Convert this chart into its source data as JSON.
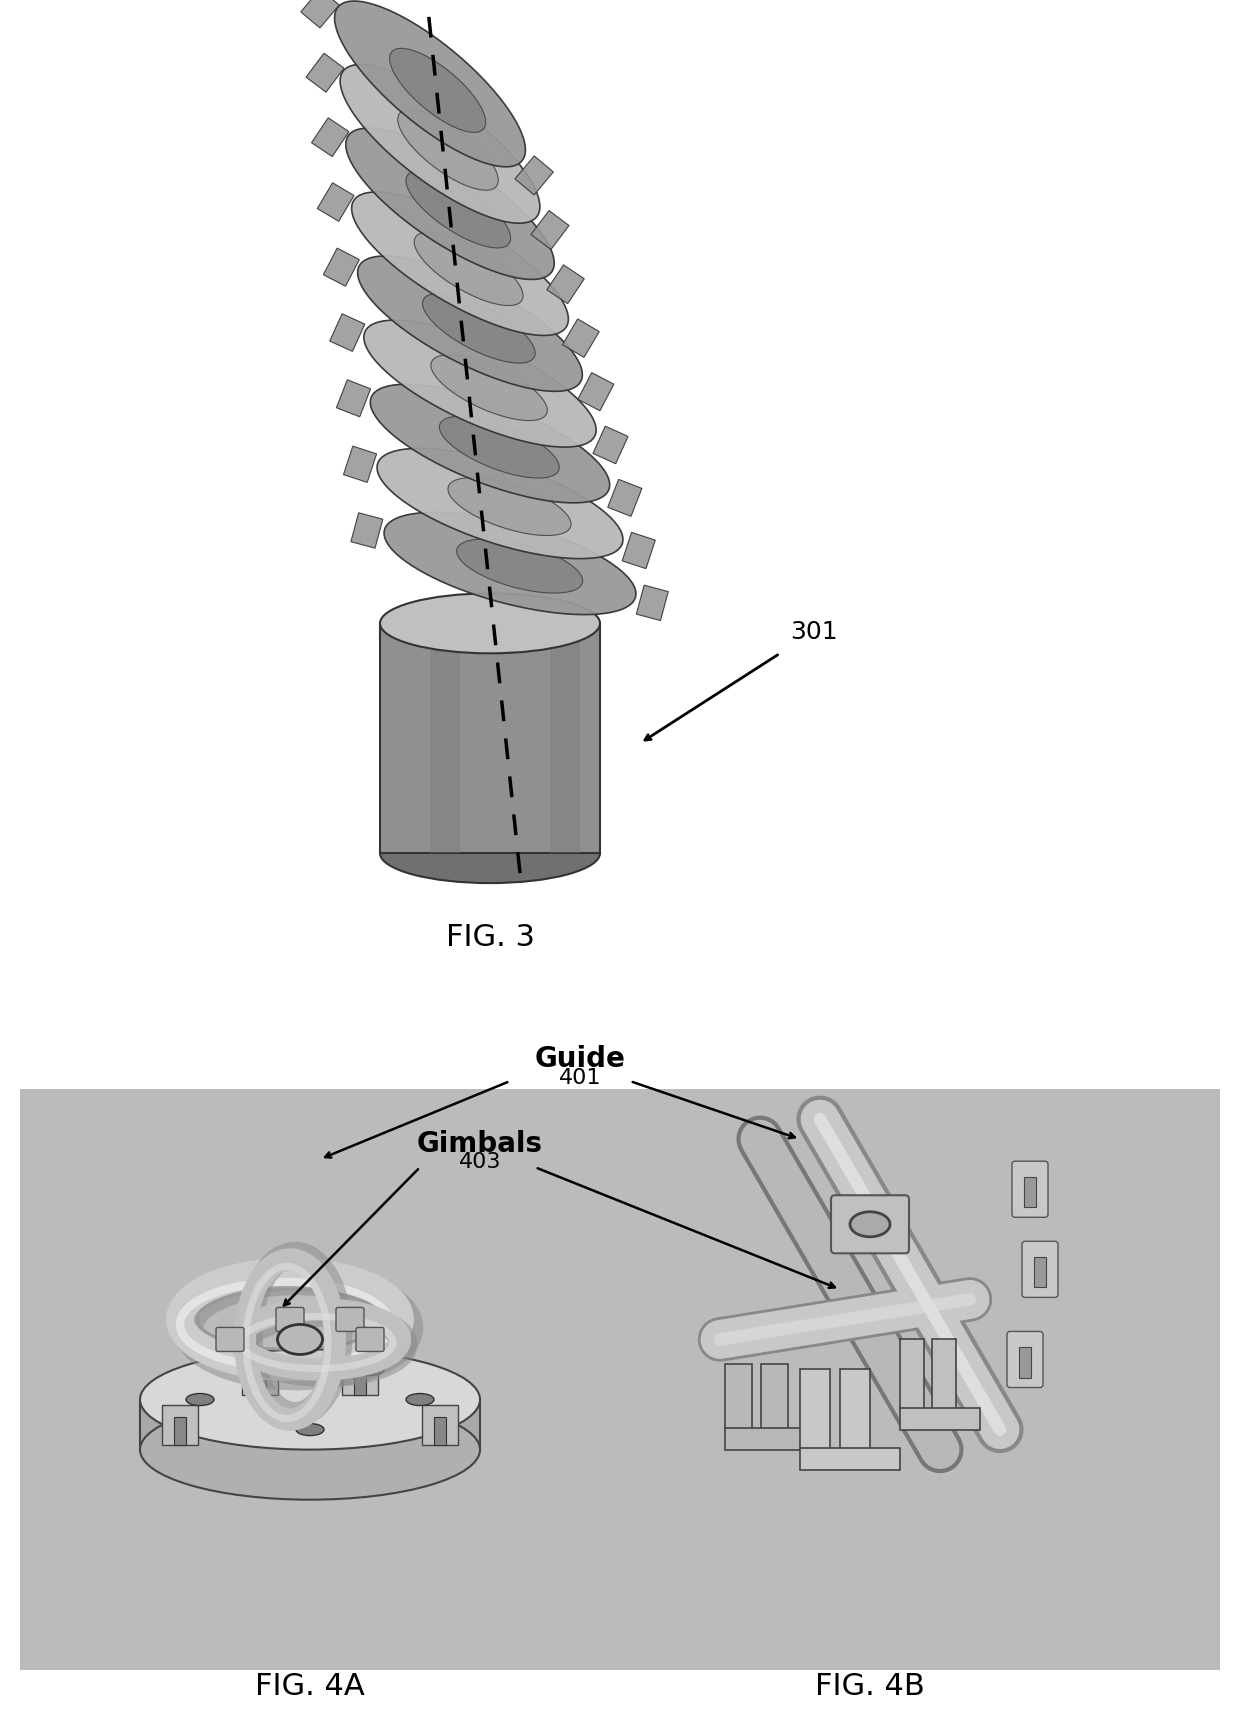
{
  "fig3_label": "FIG. 3",
  "fig4a_label": "FIG. 4A",
  "fig4b_label": "FIG. 4B",
  "ref_301": "301",
  "ref_401": "401",
  "ref_403": "403",
  "guide_label": "Guide",
  "gimbals_label": "Gimbals",
  "background_color": "#ffffff",
  "bottom_panel_bg": "#bbbbbb",
  "fig3_title_fontsize": 22,
  "fig4_title_fontsize": 22,
  "annotation_fontsize": 18,
  "bold_label_fontsize": 20
}
